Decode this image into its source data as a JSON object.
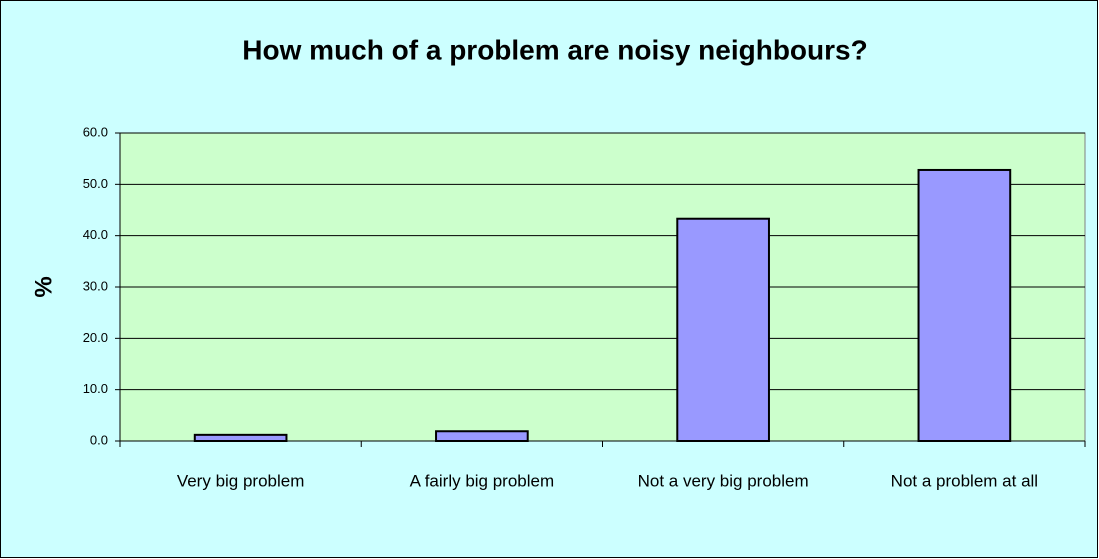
{
  "chart_data": {
    "type": "bar",
    "title": "How much of a problem are noisy neighbours?",
    "y_label": "%",
    "categories": [
      "Very big problem",
      "A fairly big problem",
      "Not a very big problem",
      "Not a problem at all"
    ],
    "values": [
      1.2,
      1.9,
      43.3,
      52.8
    ],
    "color": "#9999ff",
    "ylim": [
      0,
      60
    ],
    "yticks": [
      {
        "value": 0,
        "label": "0.0"
      },
      {
        "value": 10,
        "label": "10.0"
      },
      {
        "value": 20,
        "label": "20.0"
      },
      {
        "value": 30,
        "label": "30.0"
      },
      {
        "value": 40,
        "label": "40.0"
      },
      {
        "value": 50,
        "label": "50.0"
      },
      {
        "value": 60,
        "label": "60.0"
      }
    ],
    "grid": true
  }
}
